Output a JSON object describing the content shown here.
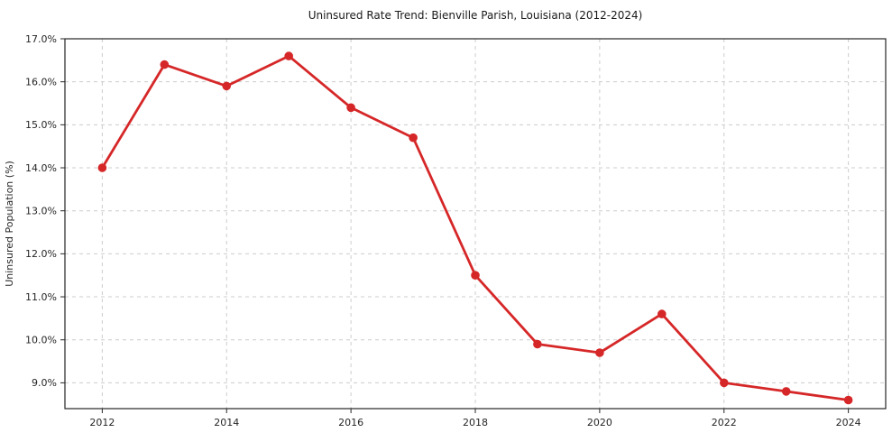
{
  "page": {
    "background": "#ffffff"
  },
  "chart_data": {
    "type": "line",
    "title": "Uninsured Rate Trend: Bienville Parish, Louisiana (2012-2024)",
    "xlabel": "",
    "ylabel": "Uninsured Population (%)",
    "x": [
      2012,
      2013,
      2014,
      2015,
      2016,
      2017,
      2018,
      2019,
      2020,
      2021,
      2022,
      2023,
      2024
    ],
    "series": [
      {
        "name": "Uninsured rate",
        "values": [
          14.0,
          16.4,
          15.9,
          16.6,
          15.4,
          14.7,
          11.5,
          9.9,
          9.7,
          10.6,
          9.0,
          8.8,
          8.6
        ],
        "color": "#d62728",
        "marker": "circle"
      }
    ],
    "xticks": {
      "values": [
        2012,
        2014,
        2016,
        2018,
        2020,
        2022,
        2024
      ],
      "labels": [
        "2012",
        "2014",
        "2016",
        "2018",
        "2020",
        "2022",
        "2024"
      ]
    },
    "yticks": {
      "values": [
        17.0,
        16.0,
        15.0,
        14.0,
        13.0,
        12.0,
        11.0,
        10.0,
        9.0
      ],
      "labels": [
        "17.0%",
        "16.0%",
        "15.0%",
        "14.0%",
        "13.0%",
        "12.0%",
        "11.0%",
        "10.0%",
        "9.0%"
      ]
    },
    "xlim": [
      2011.4,
      2024.6
    ],
    "ylim": [
      8.4,
      17.0
    ],
    "grid": "both, dashed",
    "legend": "none",
    "colors": {
      "line": "#d62728",
      "grid": "#cccccc",
      "axis": "#262626",
      "text": "#262626",
      "background": "#ffffff"
    }
  }
}
